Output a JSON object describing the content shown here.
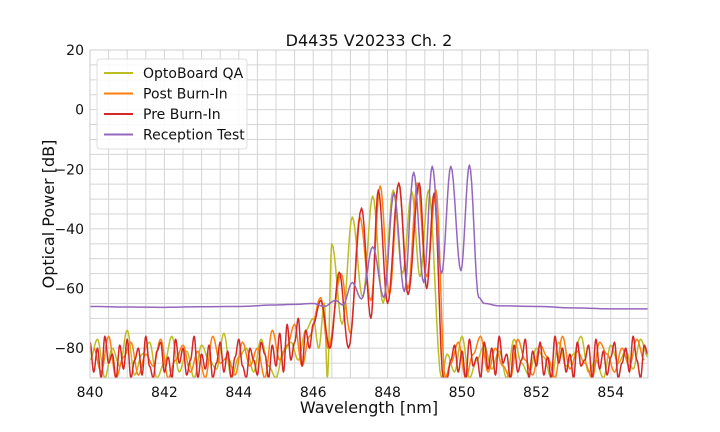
{
  "chart_data": {
    "type": "line",
    "title": "D4435 V20233 Ch. 2",
    "xlabel": "Wavelength [nm]",
    "ylabel": "Optical Power [dB]",
    "xlim": [
      840,
      855
    ],
    "ylim": [
      -90,
      20
    ],
    "xticks": [
      840,
      842,
      844,
      846,
      848,
      850,
      852,
      854
    ],
    "yticks": [
      20,
      0,
      -20,
      -40,
      -60,
      -80
    ],
    "xtick_labels": [
      "840",
      "842",
      "844",
      "846",
      "848",
      "850",
      "852",
      "854"
    ],
    "ytick_labels": [
      "20",
      "0",
      "−20",
      "−40",
      "−60",
      "−80"
    ],
    "grid": true,
    "legend_position": "top-left",
    "series": [
      {
        "name": "OptoBoard QA",
        "color": "#bcbd22",
        "x": [
          840.0,
          840.2,
          840.4,
          840.6,
          840.8,
          841.0,
          841.2,
          841.4,
          841.6,
          841.8,
          842.0,
          842.2,
          842.4,
          842.6,
          842.8,
          843.0,
          843.2,
          843.4,
          843.6,
          843.8,
          844.0,
          844.2,
          844.4,
          844.6,
          844.8,
          845.0,
          845.2,
          845.4,
          845.6,
          845.8,
          846.0,
          846.15,
          846.3,
          846.38,
          846.5,
          846.78,
          847.05,
          847.33,
          847.6,
          847.88,
          848.15,
          848.4,
          848.65,
          848.87,
          849.1,
          849.45,
          849.6,
          849.8,
          850.0,
          850.2,
          850.4,
          850.6,
          850.8,
          851.0,
          851.2,
          851.4,
          851.6,
          851.8,
          852.0,
          852.2,
          852.4,
          852.6,
          852.8,
          853.0,
          853.2,
          853.4,
          853.6,
          853.8,
          854.0,
          854.2,
          854.4,
          854.6,
          854.8,
          855.0
        ],
        "y": [
          -84,
          -77,
          -90,
          -80,
          -86,
          -74,
          -89,
          -82,
          -78,
          -90,
          -85,
          -76,
          -88,
          -81,
          -90,
          -79,
          -84,
          -87,
          -75,
          -90,
          -83,
          -80,
          -88,
          -77,
          -86,
          -90,
          -81,
          -78,
          -84,
          -74,
          -70,
          -80,
          -65,
          -90,
          -45,
          -72,
          -36,
          -63,
          -29,
          -65,
          -27,
          -55,
          -27.5,
          -56,
          -27,
          -90,
          -82,
          -88,
          -76,
          -90,
          -84,
          -79,
          -87,
          -81,
          -90,
          -77,
          -85,
          -89,
          -80,
          -83,
          -90,
          -78,
          -86,
          -82,
          -76,
          -88,
          -84,
          -90,
          -79,
          -85,
          -81,
          -87,
          -77,
          -83
        ]
      },
      {
        "name": "Post Burn-In",
        "color": "#ff7f0e",
        "x": [
          840.1,
          840.3,
          840.5,
          840.7,
          840.9,
          841.1,
          841.3,
          841.5,
          841.7,
          841.9,
          842.1,
          842.3,
          842.5,
          842.7,
          842.9,
          843.1,
          843.3,
          843.5,
          843.7,
          843.9,
          844.1,
          844.3,
          844.5,
          844.7,
          844.9,
          845.1,
          845.3,
          845.5,
          845.7,
          845.9,
          846.2,
          846.4,
          846.75,
          847.0,
          847.25,
          847.55,
          847.8,
          848.05,
          848.3,
          848.55,
          848.8,
          849.05,
          849.3,
          849.55,
          849.7,
          849.9,
          850.1,
          850.3,
          850.5,
          850.7,
          850.9,
          851.1,
          851.3,
          851.5,
          851.7,
          851.9,
          852.1,
          852.3,
          852.5,
          852.7,
          852.9,
          853.1,
          853.3,
          853.5,
          853.7,
          853.9,
          854.1,
          854.3,
          854.5,
          854.7,
          854.9
        ],
        "y": [
          -80,
          -88,
          -76,
          -90,
          -83,
          -78,
          -89,
          -82,
          -86,
          -77,
          -90,
          -84,
          -79,
          -88,
          -81,
          -90,
          -76,
          -85,
          -83,
          -89,
          -78,
          -86,
          -80,
          -90,
          -74,
          -84,
          -79,
          -72,
          -86,
          -76,
          -63,
          -80,
          -55,
          -75,
          -36,
          -64,
          -25.6,
          -62,
          -24.6,
          -60,
          -24.6,
          -56,
          -27,
          -90,
          -85,
          -78,
          -90,
          -82,
          -76,
          -88,
          -80,
          -86,
          -90,
          -77,
          -84,
          -89,
          -79,
          -83,
          -90,
          -76,
          -87,
          -81,
          -85,
          -90,
          -78,
          -82,
          -88,
          -80,
          -86,
          -77,
          -84
        ]
      },
      {
        "name": "Pre Burn-In",
        "color": "#d62728",
        "x": [
          840.0,
          840.1,
          840.2,
          840.3,
          840.4,
          840.5,
          840.6,
          840.7,
          840.8,
          840.9,
          841.0,
          841.1,
          841.2,
          841.3,
          841.4,
          841.5,
          841.6,
          841.7,
          841.8,
          841.9,
          842.0,
          842.1,
          842.2,
          842.3,
          842.4,
          842.5,
          842.6,
          842.7,
          842.8,
          842.9,
          843.0,
          843.1,
          843.2,
          843.3,
          843.4,
          843.5,
          843.6,
          843.7,
          843.8,
          843.9,
          844.0,
          844.1,
          844.2,
          844.3,
          844.4,
          844.5,
          844.6,
          844.7,
          844.8,
          844.9,
          845.0,
          845.1,
          845.2,
          845.3,
          845.4,
          845.5,
          845.6,
          845.7,
          845.8,
          845.9,
          846.0,
          846.2,
          846.45,
          846.7,
          846.95,
          847.3,
          847.55,
          847.75,
          848.0,
          848.3,
          848.55,
          848.85,
          849.05,
          849.25,
          849.5,
          849.6,
          849.7,
          849.8,
          849.9,
          850.0,
          850.1,
          850.2,
          850.3,
          850.4,
          850.5,
          850.6,
          850.7,
          850.8,
          850.9,
          851.0,
          851.1,
          851.2,
          851.3,
          851.4,
          851.5,
          851.6,
          851.7,
          851.8,
          851.9,
          852.0,
          852.1,
          852.2,
          852.3,
          852.4,
          852.5,
          852.6,
          852.7,
          852.8,
          852.9,
          853.0,
          853.1,
          853.2,
          853.3,
          853.4,
          853.5,
          853.6,
          853.7,
          853.8,
          853.9,
          854.0,
          854.1,
          854.2,
          854.3,
          854.4,
          854.5,
          854.6,
          854.7,
          854.8,
          854.9,
          855.0
        ],
        "y": [
          -78,
          -88,
          -80,
          -90,
          -76,
          -85,
          -82,
          -90,
          -79,
          -87,
          -77,
          -90,
          -84,
          -80,
          -89,
          -76,
          -86,
          -90,
          -81,
          -78,
          -88,
          -83,
          -90,
          -77,
          -85,
          -80,
          -89,
          -84,
          -76,
          -90,
          -82,
          -87,
          -79,
          -90,
          -85,
          -78,
          -88,
          -81,
          -90,
          -83,
          -77,
          -86,
          -90,
          -80,
          -84,
          -89,
          -78,
          -82,
          -90,
          -79,
          -86,
          -75,
          -88,
          -72,
          -84,
          -78,
          -70,
          -86,
          -74,
          -80,
          -72,
          -64,
          -80,
          -54.5,
          -80,
          -33,
          -70,
          -27,
          -65,
          -24.6,
          -62,
          -24.6,
          -60,
          -28,
          -90,
          -90,
          -84,
          -79,
          -88,
          -81,
          -90,
          -77,
          -86,
          -83,
          -90,
          -78,
          -87,
          -80,
          -89,
          -76,
          -85,
          -82,
          -90,
          -79,
          -88,
          -84,
          -77,
          -90,
          -81,
          -86,
          -78,
          -89,
          -83,
          -90,
          -76,
          -85,
          -80,
          -88,
          -82,
          -90,
          -78,
          -86,
          -84,
          -79,
          -90,
          -77,
          -87,
          -81,
          -89,
          -83,
          -78,
          -90,
          -85,
          -80,
          -88,
          -76,
          -84,
          -90,
          -79,
          -82
        ]
      },
      {
        "name": "Reception Test",
        "color": "#9467bd",
        "x": [
          840.0,
          841.0,
          842.0,
          843.0,
          844.0,
          845.0,
          845.5,
          846.0,
          846.3,
          846.6,
          846.8,
          847.05,
          847.3,
          847.6,
          847.9,
          848.17,
          848.45,
          848.7,
          848.97,
          849.2,
          849.45,
          849.7,
          849.97,
          850.2,
          850.45,
          850.6,
          851.0,
          852.0,
          853.0,
          854.0,
          855.0
        ],
        "y": [
          -66,
          -66.2,
          -66.3,
          -66.1,
          -66,
          -65.5,
          -65.3,
          -65,
          -66,
          -64,
          -65.5,
          -58,
          -63.5,
          -46,
          -63,
          -28,
          -61,
          -21,
          -58,
          -19,
          -55,
          -19,
          -54,
          -18.6,
          -63,
          -65,
          -65.8,
          -66,
          -66.5,
          -66.8,
          -66.8
        ]
      }
    ]
  }
}
